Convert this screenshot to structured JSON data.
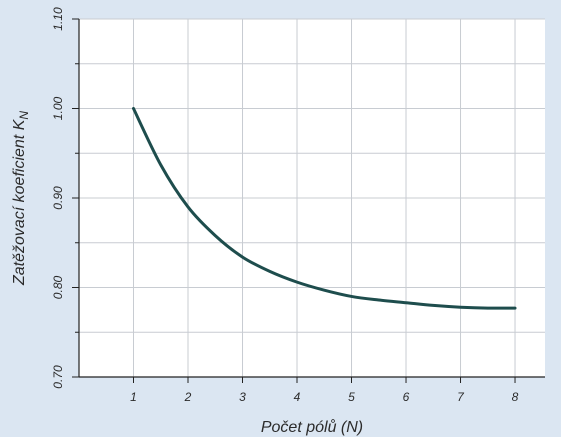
{
  "chart_data": {
    "type": "line",
    "title": "",
    "xlabel": "Počet pólů (N)",
    "ylabel_main": "Zatěžovací koeficient K",
    "ylabel_sub": "N",
    "xlim": [
      0,
      8.55
    ],
    "ylim": [
      0.7,
      1.1
    ],
    "x_ticks": [
      1,
      2,
      3,
      4,
      5,
      6,
      7,
      8
    ],
    "x_tick_labels": [
      "1",
      "2",
      "3",
      "4",
      "5",
      "6",
      "7",
      "8"
    ],
    "y_ticks": [
      0.7,
      0.8,
      0.9,
      1.0,
      1.1
    ],
    "y_tick_labels": [
      "0.70",
      "0.80",
      "0.90",
      "1.00",
      "1.10"
    ],
    "grid": true,
    "colors": {
      "line": "#1e4d4d",
      "grid": "#c8ccd2",
      "plot_bg": "#ffffff",
      "page_bg": "#dbe6f2",
      "axis": "#222222"
    },
    "series": [
      {
        "x": [
          1,
          1.5,
          2,
          2.5,
          3,
          3.5,
          4,
          4.5,
          5,
          5.5,
          6,
          6.5,
          7,
          7.5,
          8
        ],
        "values": [
          1.0,
          0.937,
          0.89,
          0.858,
          0.834,
          0.818,
          0.806,
          0.797,
          0.79,
          0.786,
          0.783,
          0.78,
          0.778,
          0.777,
          0.777
        ]
      }
    ]
  }
}
